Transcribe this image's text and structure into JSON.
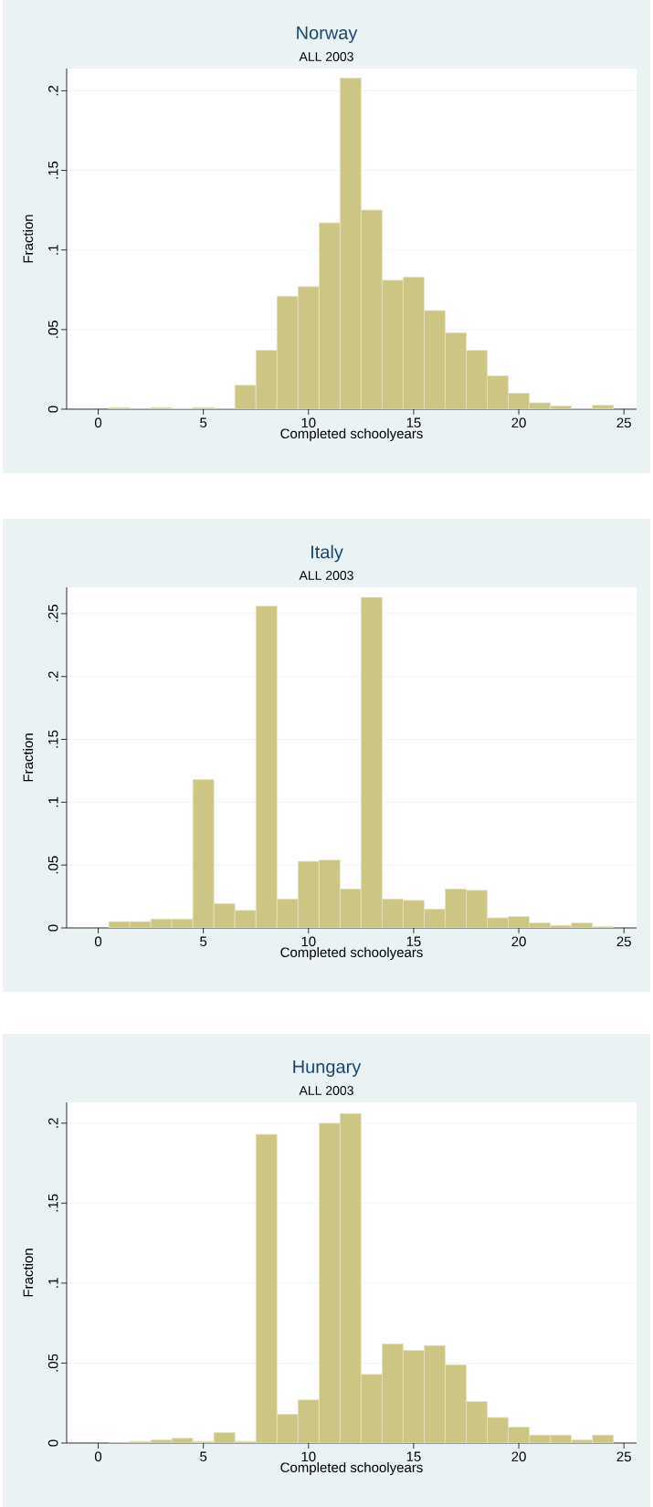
{
  "chart_data": [
    {
      "type": "histogram",
      "title": "Norway",
      "subtitle": "ALL 2003",
      "xlabel": "Completed schoolyears",
      "ylabel": "Fraction",
      "color": "#cdc584",
      "grid": "y",
      "bins": [
        0.5,
        1.5,
        2.5,
        3.5,
        4.5,
        5.5,
        6.5,
        7.5,
        8.5,
        9.5,
        10.5,
        11.5,
        12.5,
        13.5,
        14.5,
        15.5,
        16.5,
        17.5,
        18.5,
        19.5,
        20.5,
        21.5,
        22.5,
        23.5,
        24.5
      ],
      "values": [
        0.001,
        0,
        0.001,
        0.0005,
        0.001,
        0,
        0.015,
        0.037,
        0.071,
        0.077,
        0.117,
        0.208,
        0.125,
        0.081,
        0.083,
        0.062,
        0.048,
        0.037,
        0.021,
        0.01,
        0.004,
        0.002,
        0,
        0.0025
      ],
      "xlim": [
        -1.5,
        25.6
      ],
      "ylim": [
        0,
        0.214
      ],
      "xticks": [
        0,
        5,
        10,
        15,
        20,
        25
      ],
      "yticks": [
        0,
        {
          "value": 0.05,
          "label": ".05"
        },
        {
          "value": 0.1,
          "label": ".1"
        },
        {
          "value": 0.15,
          "label": ".15"
        },
        {
          "value": 0.2,
          "label": ".2"
        }
      ]
    },
    {
      "type": "histogram",
      "title": "Italy",
      "subtitle": "ALL 2003",
      "xlabel": "Completed schoolyears",
      "ylabel": "Fraction",
      "color": "#cdc584",
      "grid": "y",
      "bins": [
        0.5,
        1.5,
        2.5,
        3.5,
        4.5,
        5.5,
        6.5,
        7.5,
        8.5,
        9.5,
        10.5,
        11.5,
        12.5,
        13.5,
        14.5,
        15.5,
        16.5,
        17.5,
        18.5,
        19.5,
        20.5,
        21.5,
        22.5,
        23.5,
        24.5
      ],
      "values": [
        0.005,
        0.005,
        0.007,
        0.007,
        0.118,
        0.0195,
        0.014,
        0.256,
        0.023,
        0.053,
        0.054,
        0.031,
        0.263,
        0.023,
        0.022,
        0.015,
        0.031,
        0.03,
        0.008,
        0.009,
        0.004,
        0.002,
        0.004,
        0.001
      ],
      "xlim": [
        -1.5,
        25.6
      ],
      "ylim": [
        0,
        0.271
      ],
      "xticks": [
        0,
        5,
        10,
        15,
        20,
        25
      ],
      "yticks": [
        0,
        {
          "value": 0.05,
          "label": ".05"
        },
        {
          "value": 0.1,
          "label": ".1"
        },
        {
          "value": 0.15,
          "label": ".15"
        },
        {
          "value": 0.2,
          "label": ".2"
        },
        {
          "value": 0.25,
          "label": ".25"
        }
      ]
    },
    {
      "type": "histogram",
      "title": "Hungary",
      "subtitle": "ALL 2003",
      "xlabel": "Completed schoolyears",
      "ylabel": "Fraction",
      "color": "#cdc584",
      "grid": "y",
      "bins": [
        0.5,
        1.5,
        2.5,
        3.5,
        4.5,
        5.5,
        6.5,
        7.5,
        8.5,
        9.5,
        10.5,
        11.5,
        12.5,
        13.5,
        14.5,
        15.5,
        16.5,
        17.5,
        18.5,
        19.5,
        20.5,
        21.5,
        22.5,
        23.5,
        24.5
      ],
      "values": [
        0,
        0.001,
        0.002,
        0.003,
        0.001,
        0.0065,
        0.001,
        0.193,
        0.018,
        0.027,
        0.2,
        0.206,
        0.043,
        0.062,
        0.058,
        0.061,
        0.049,
        0.026,
        0.016,
        0.01,
        0.005,
        0.005,
        0.002,
        0.005
      ],
      "xlim": [
        -1.5,
        25.6
      ],
      "ylim": [
        0,
        0.213
      ],
      "xticks": [
        0,
        5,
        10,
        15,
        20,
        25
      ],
      "yticks": [
        0,
        {
          "value": 0.05,
          "label": ".05"
        },
        {
          "value": 0.1,
          "label": ".1"
        },
        {
          "value": 0.15,
          "label": ".15"
        },
        {
          "value": 0.2,
          "label": ".2"
        }
      ]
    }
  ]
}
